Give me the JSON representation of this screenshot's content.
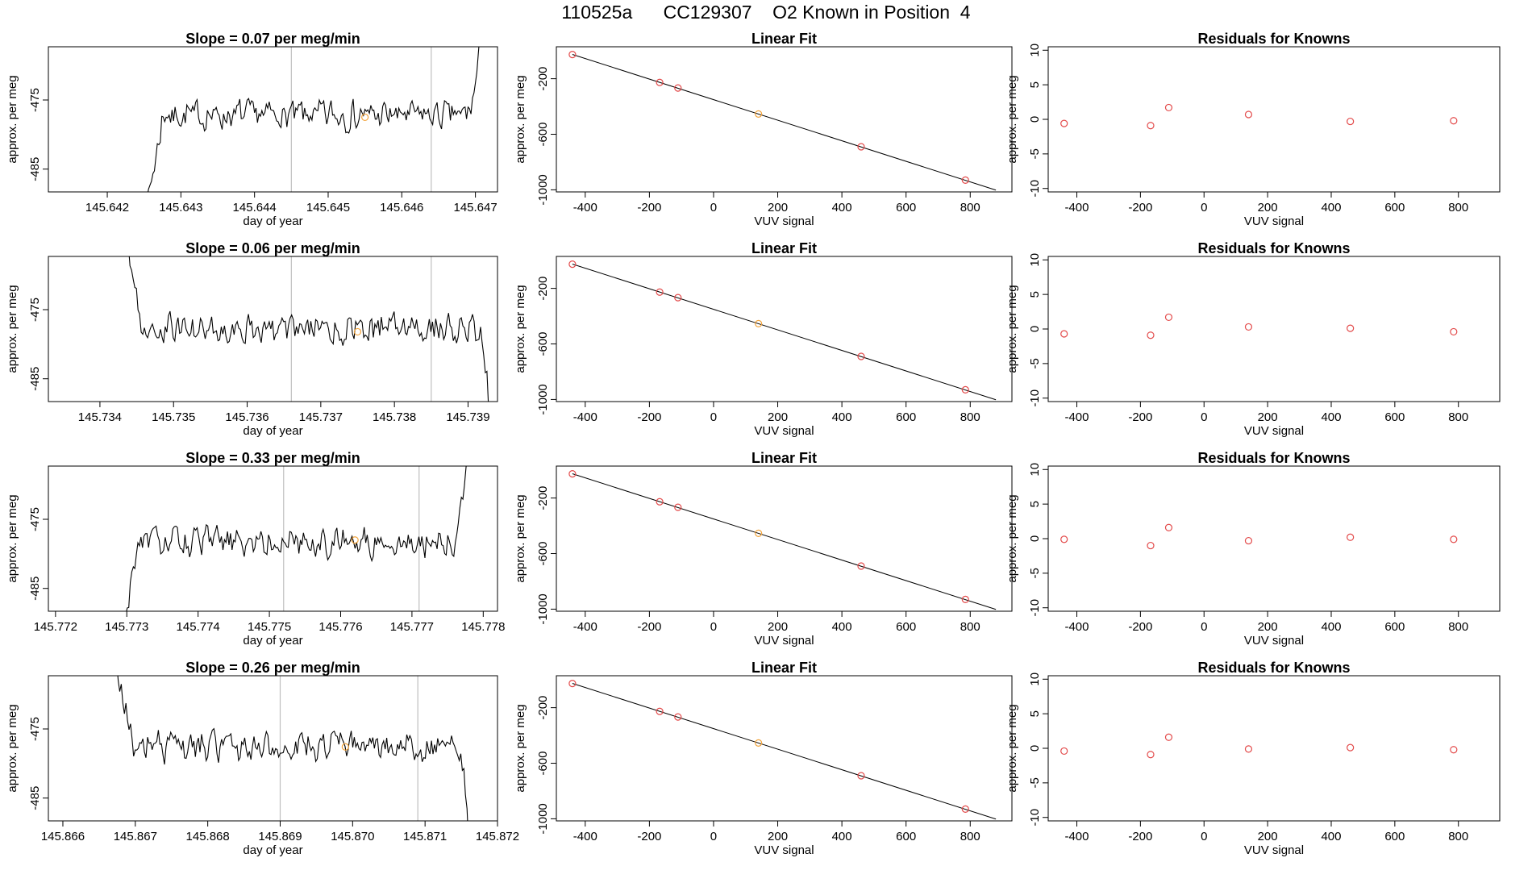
{
  "page_title": "110525a      CC129307    O2 Known in Position  4",
  "colors": {
    "trace": "#000000",
    "vline": "#bfbfbf",
    "known_point": "#e34a4a",
    "highlight_point": "#f2a33a",
    "fit_line": "#000000",
    "frame": "#000000"
  },
  "chart_data": [
    {
      "type": "line",
      "panel": "trace",
      "row": 1,
      "title": "Slope =  0.07  per meg/min",
      "xlabel": "day of year",
      "ylabel": "approx. per meg",
      "xlim": [
        145.6412,
        145.6473
      ],
      "ylim": [
        -488.3,
        -467.3
      ],
      "xticks": [
        145.642,
        145.643,
        145.644,
        145.645,
        145.646,
        145.647
      ],
      "xticklabels": [
        "145.642",
        "145.643",
        "145.644",
        "145.645",
        "145.646",
        "145.647"
      ],
      "yticks": [
        -475,
        -485
      ],
      "yticklabels": [
        "-475",
        "-485"
      ],
      "vlines": [
        145.6445,
        145.6464
      ],
      "highlight": {
        "x": 145.6455,
        "y": -477.5
      },
      "trace_start": 145.6425,
      "trace_end": 145.6471,
      "trace_mean": -477.2,
      "trace_seed": 7
    },
    {
      "type": "line",
      "panel": "trace",
      "row": 2,
      "title": "Slope =  0.06  per meg/min",
      "xlabel": "day of year",
      "ylabel": "approx. per meg",
      "xlim": [
        145.7333,
        145.7394
      ],
      "ylim": [
        -488.3,
        -467.3
      ],
      "xticks": [
        145.734,
        145.735,
        145.736,
        145.737,
        145.738,
        145.739
      ],
      "xticklabels": [
        "145.734",
        "145.735",
        "145.736",
        "145.737",
        "145.738",
        "145.739"
      ],
      "yticks": [
        -475,
        -485
      ],
      "yticklabels": [
        "-475",
        "-485"
      ],
      "vlines": [
        145.7366,
        145.7385
      ],
      "highlight": {
        "x": 145.7375,
        "y": -478.2
      },
      "trace_start": 145.7343,
      "trace_end": 145.7393,
      "trace_mean": -477.8,
      "trace_seed": 19
    },
    {
      "type": "line",
      "panel": "trace",
      "row": 3,
      "title": "Slope =  0.33  per meg/min",
      "xlabel": "day of year",
      "ylabel": "approx. per meg",
      "xlim": [
        145.7719,
        145.7782
      ],
      "ylim": [
        -488.3,
        -467.3
      ],
      "xticks": [
        145.772,
        145.773,
        145.774,
        145.775,
        145.776,
        145.777,
        145.778
      ],
      "xticklabels": [
        "145.772",
        "145.773",
        "145.774",
        "145.775",
        "145.776",
        "145.777",
        "145.778"
      ],
      "yticks": [
        -475,
        -485
      ],
      "yticklabels": [
        "-475",
        "-485"
      ],
      "vlines": [
        145.7752,
        145.7771
      ],
      "highlight": {
        "x": 145.7762,
        "y": -478.0
      },
      "trace_start": 145.7729,
      "trace_end": 145.7778,
      "trace_mean": -478.3,
      "trace_seed": 31
    },
    {
      "type": "line",
      "panel": "trace",
      "row": 4,
      "title": "Slope =  0.26  per meg/min",
      "xlabel": "day of year",
      "ylabel": "approx. per meg",
      "xlim": [
        145.8658,
        145.872
      ],
      "ylim": [
        -488.3,
        -467.3
      ],
      "xticks": [
        145.866,
        145.867,
        145.868,
        145.869,
        145.87,
        145.871,
        145.872
      ],
      "xticklabels": [
        "145.866",
        "145.867",
        "145.868",
        "145.869",
        "145.870",
        "145.871",
        "145.872"
      ],
      "yticks": [
        -475,
        -485
      ],
      "yticklabels": [
        "-475",
        "-485"
      ],
      "vlines": [
        145.869,
        145.8709
      ],
      "highlight": {
        "x": 145.8699,
        "y": -477.6
      },
      "trace_start": 145.8667,
      "trace_end": 145.8716,
      "trace_mean": -477.6,
      "trace_seed": 43
    },
    {
      "type": "scatter",
      "panel": "fit",
      "row": 1,
      "title": "Linear Fit",
      "xlabel": "VUV signal",
      "ylabel": "approx. per meg",
      "xlim": [
        -490,
        930
      ],
      "ylim": [
        -1015,
        30
      ],
      "xticks": [
        -400,
        -200,
        0,
        200,
        400,
        600,
        800
      ],
      "xticklabels": [
        "-400",
        "-200",
        "0",
        "200",
        "400",
        "600",
        "800"
      ],
      "yticks": [
        -200,
        -600,
        -1000
      ],
      "yticklabels": [
        "-200",
        "-600",
        "-1000"
      ],
      "line": {
        "x": [
          -440,
          880
        ],
        "y": [
          -25,
          -1002
        ]
      },
      "x": [
        -440,
        -168,
        -111,
        140,
        460,
        785
      ],
      "y": [
        -26,
        -227,
        -267,
        -454,
        -690,
        -930
      ],
      "highlight_index": 3
    },
    {
      "type": "scatter",
      "panel": "fit",
      "row": 2,
      "title": "Linear Fit",
      "xlabel": "VUV signal",
      "ylabel": "approx. per meg",
      "xlim": [
        -490,
        930
      ],
      "ylim": [
        -1015,
        30
      ],
      "xticks": [
        -400,
        -200,
        0,
        200,
        400,
        600,
        800
      ],
      "xticklabels": [
        "-400",
        "-200",
        "0",
        "200",
        "400",
        "600",
        "800"
      ],
      "yticks": [
        -200,
        -600,
        -1000
      ],
      "yticklabels": [
        "-200",
        "-600",
        "-1000"
      ],
      "line": {
        "x": [
          -440,
          880
        ],
        "y": [
          -25,
          -1002
        ]
      },
      "x": [
        -440,
        -168,
        -111,
        140,
        460,
        785
      ],
      "y": [
        -26,
        -227,
        -267,
        -454,
        -690,
        -930
      ],
      "highlight_index": 3
    },
    {
      "type": "scatter",
      "panel": "fit",
      "row": 3,
      "title": "Linear Fit",
      "xlabel": "VUV signal",
      "ylabel": "approx. per meg",
      "xlim": [
        -490,
        930
      ],
      "ylim": [
        -1015,
        30
      ],
      "xticks": [
        -400,
        -200,
        0,
        200,
        400,
        600,
        800
      ],
      "xticklabels": [
        "-400",
        "-200",
        "0",
        "200",
        "400",
        "600",
        "800"
      ],
      "yticks": [
        -200,
        -600,
        -1000
      ],
      "yticklabels": [
        "-200",
        "-600",
        "-1000"
      ],
      "line": {
        "x": [
          -440,
          880
        ],
        "y": [
          -25,
          -1002
        ]
      },
      "x": [
        -440,
        -168,
        -111,
        140,
        460,
        785
      ],
      "y": [
        -26,
        -227,
        -267,
        -454,
        -690,
        -930
      ],
      "highlight_index": 3
    },
    {
      "type": "scatter",
      "panel": "fit",
      "row": 4,
      "title": "Linear Fit",
      "xlabel": "VUV signal",
      "ylabel": "approx. per meg",
      "xlim": [
        -490,
        930
      ],
      "ylim": [
        -1015,
        30
      ],
      "xticks": [
        -400,
        -200,
        0,
        200,
        400,
        600,
        800
      ],
      "xticklabels": [
        "-400",
        "-200",
        "0",
        "200",
        "400",
        "600",
        "800"
      ],
      "yticks": [
        -200,
        -600,
        -1000
      ],
      "yticklabels": [
        "-200",
        "-600",
        "-1000"
      ],
      "line": {
        "x": [
          -440,
          880
        ],
        "y": [
          -25,
          -1002
        ]
      },
      "x": [
        -440,
        -168,
        -111,
        140,
        460,
        785
      ],
      "y": [
        -26,
        -227,
        -267,
        -454,
        -690,
        -930
      ],
      "highlight_index": 3
    },
    {
      "type": "scatter",
      "panel": "residuals",
      "row": 1,
      "title": "Residuals for Knowns",
      "xlabel": "VUV signal",
      "ylabel": "approx. per meg",
      "xlim": [
        -490,
        930
      ],
      "ylim": [
        -10.5,
        10.5
      ],
      "xticks": [
        -400,
        -200,
        0,
        200,
        400,
        600,
        800
      ],
      "xticklabels": [
        "-400",
        "-200",
        "0",
        "200",
        "400",
        "600",
        "800"
      ],
      "yticks": [
        10,
        5,
        0,
        -5,
        -10
      ],
      "yticklabels": [
        "10",
        "5",
        "0",
        "-5",
        "-10"
      ],
      "x": [
        -440,
        -168,
        -111,
        140,
        460,
        785
      ],
      "y": [
        -0.6,
        -0.9,
        1.7,
        0.7,
        -0.3,
        -0.2
      ]
    },
    {
      "type": "scatter",
      "panel": "residuals",
      "row": 2,
      "title": "Residuals for Knowns",
      "xlabel": "VUV signal",
      "ylabel": "approx. per meg",
      "xlim": [
        -490,
        930
      ],
      "ylim": [
        -10.5,
        10.5
      ],
      "xticks": [
        -400,
        -200,
        0,
        200,
        400,
        600,
        800
      ],
      "xticklabels": [
        "-400",
        "-200",
        "0",
        "200",
        "400",
        "600",
        "800"
      ],
      "yticks": [
        10,
        5,
        0,
        -5,
        -10
      ],
      "yticklabels": [
        "10",
        "5",
        "0",
        "-5",
        "-10"
      ],
      "x": [
        -440,
        -168,
        -111,
        140,
        460,
        785
      ],
      "y": [
        -0.7,
        -0.9,
        1.7,
        0.3,
        0.1,
        -0.4
      ]
    },
    {
      "type": "scatter",
      "panel": "residuals",
      "row": 3,
      "title": "Residuals for Knowns",
      "xlabel": "VUV signal",
      "ylabel": "approx. per meg",
      "xlim": [
        -490,
        930
      ],
      "ylim": [
        -10.5,
        10.5
      ],
      "xticks": [
        -400,
        -200,
        0,
        200,
        400,
        600,
        800
      ],
      "xticklabels": [
        "-400",
        "-200",
        "0",
        "200",
        "400",
        "600",
        "800"
      ],
      "yticks": [
        10,
        5,
        0,
        -5,
        -10
      ],
      "yticklabels": [
        "10",
        "5",
        "0",
        "-5",
        "-10"
      ],
      "x": [
        -440,
        -168,
        -111,
        140,
        460,
        785
      ],
      "y": [
        -0.1,
        -1.0,
        1.6,
        -0.3,
        0.2,
        -0.1
      ]
    },
    {
      "type": "scatter",
      "panel": "residuals",
      "row": 4,
      "title": "Residuals for Knowns",
      "xlabel": "VUV signal",
      "ylabel": "approx. per meg",
      "xlim": [
        -490,
        930
      ],
      "ylim": [
        -10.5,
        10.5
      ],
      "xticks": [
        -400,
        -200,
        0,
        200,
        400,
        600,
        800
      ],
      "xticklabels": [
        "-400",
        "-200",
        "0",
        "200",
        "400",
        "600",
        "800"
      ],
      "yticks": [
        10,
        5,
        0,
        -5,
        -10
      ],
      "yticklabels": [
        "10",
        "5",
        "0",
        "-5",
        "-10"
      ],
      "x": [
        -440,
        -168,
        -111,
        140,
        460,
        785
      ],
      "y": [
        -0.4,
        -0.9,
        1.6,
        -0.1,
        0.1,
        -0.2
      ]
    }
  ]
}
